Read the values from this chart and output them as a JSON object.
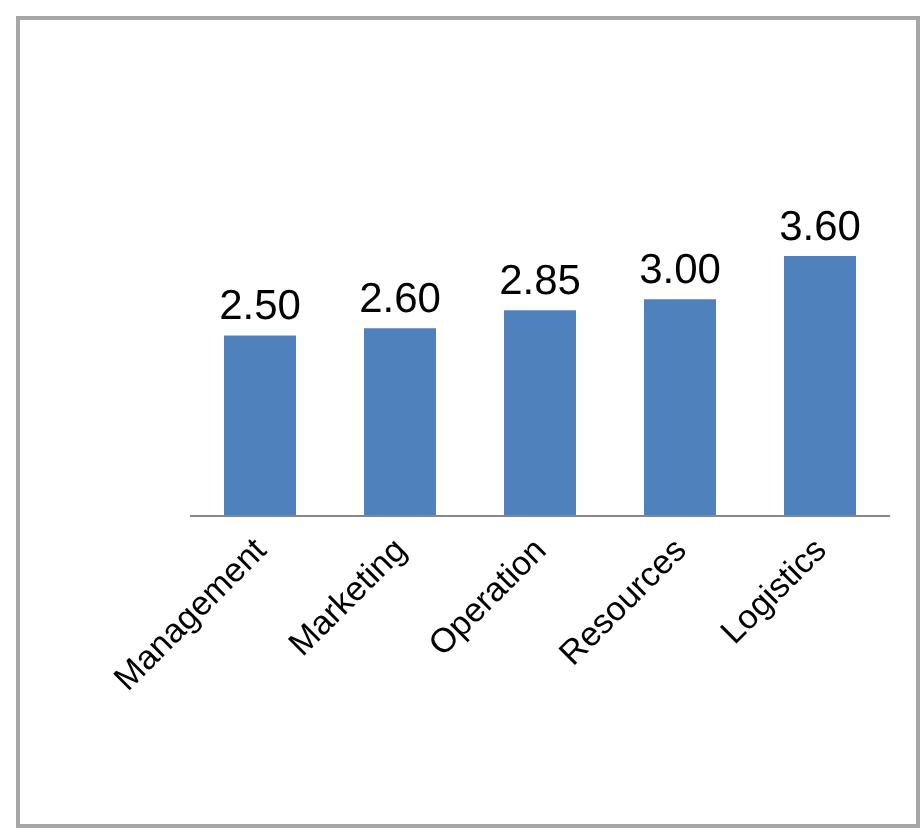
{
  "chart_data": {
    "type": "bar",
    "categories": [
      "Management",
      "Marketing",
      "Operation",
      "Resources",
      "Logistics"
    ],
    "values": [
      2.5,
      2.6,
      2.85,
      3.0,
      3.6
    ],
    "value_labels": [
      "2.50",
      "2.60",
      "2.85",
      "3.00",
      "3.60"
    ],
    "color": "#4f81bd",
    "legend": false,
    "grid": false
  }
}
